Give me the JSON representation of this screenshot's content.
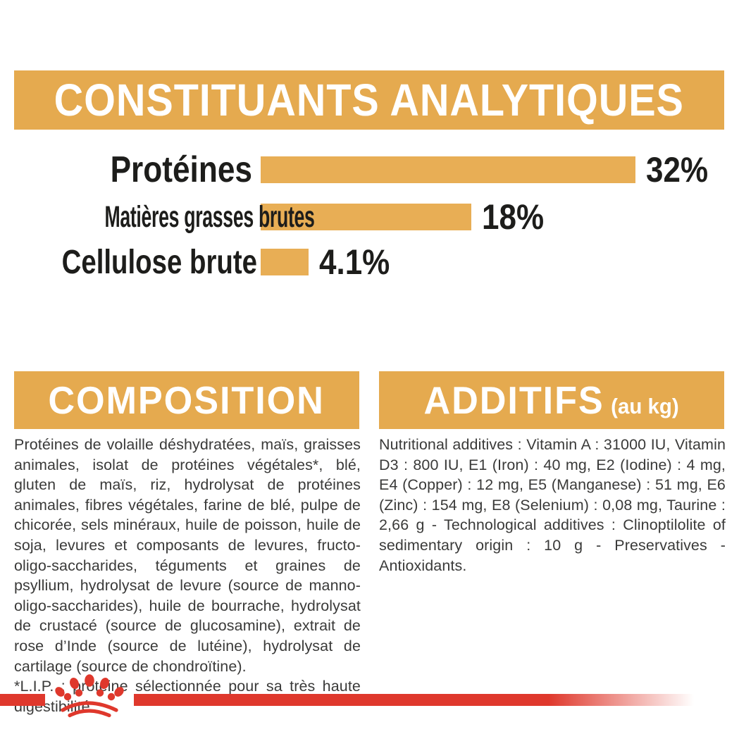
{
  "colors": {
    "gold_band": "#E5AA4F",
    "gold_bar": "#E8AE55",
    "brand_red": "#DF382C",
    "heading_text": "#FFFFFF",
    "chart_text": "#1D1D1B",
    "body_text": "#3A3A39"
  },
  "analytical_section": {
    "title": "CONSTITUANTS ANALYTIQUES"
  },
  "chart_data": {
    "type": "bar",
    "orientation": "horizontal",
    "title": "CONSTITUANTS ANALYTIQUES",
    "categories": [
      "Protéines",
      "Matières grasses brutes",
      "Cellulose brute"
    ],
    "values": [
      32,
      18,
      4.1
    ],
    "value_labels": [
      "32%",
      "18%",
      "4.1%"
    ],
    "xlim": [
      0,
      32
    ],
    "grid": false,
    "legend": false,
    "bar_color": "#E8AE55"
  },
  "composition_section": {
    "title": "COMPOSITION",
    "body": "Protéines de volaille déshydratées, maïs, graisses animales, isolat de protéines végétales*, blé, gluten de maïs, riz, hydrolysat de protéines animales, fibres végétales, farine de blé, pulpe de chicorée, sels minéraux, huile de poisson, huile de soja, levures et composants de levures, fructo-oligo-saccharides, téguments et graines de psyllium, hydrolysat de levure (source de manno-oligo-saccharides), huile de bourrache, hydrolysat de crustacé (source de glucosamine), extrait de rose d’Inde (source de lutéine), hydrolysat de cartilage (source de chondroïtine).",
    "note": "*L.I.P. : protéine sélectionnée pour sa très haute digestibilité."
  },
  "additives_section": {
    "title": "ADDITIFS",
    "title_suffix": "(au kg)",
    "body": "Nutritional additives : Vitamin A : 31000 IU, Vitamin D3 : 800 IU, E1 (Iron) : 40 mg, E2 (Iodine) : 4 mg, E4 (Copper) : 12 mg, E5 (Manganese) : 51 mg, E6 (Zinc) : 154 mg, E8 (Selenium) : 0,08 mg, Taurine : 2,66 g - Technological additives : Clinoptilolite of sedimentary origin : 10 g - Preservatives - Antioxidants.",
    "icon": "royal-canin-crown-icon"
  }
}
